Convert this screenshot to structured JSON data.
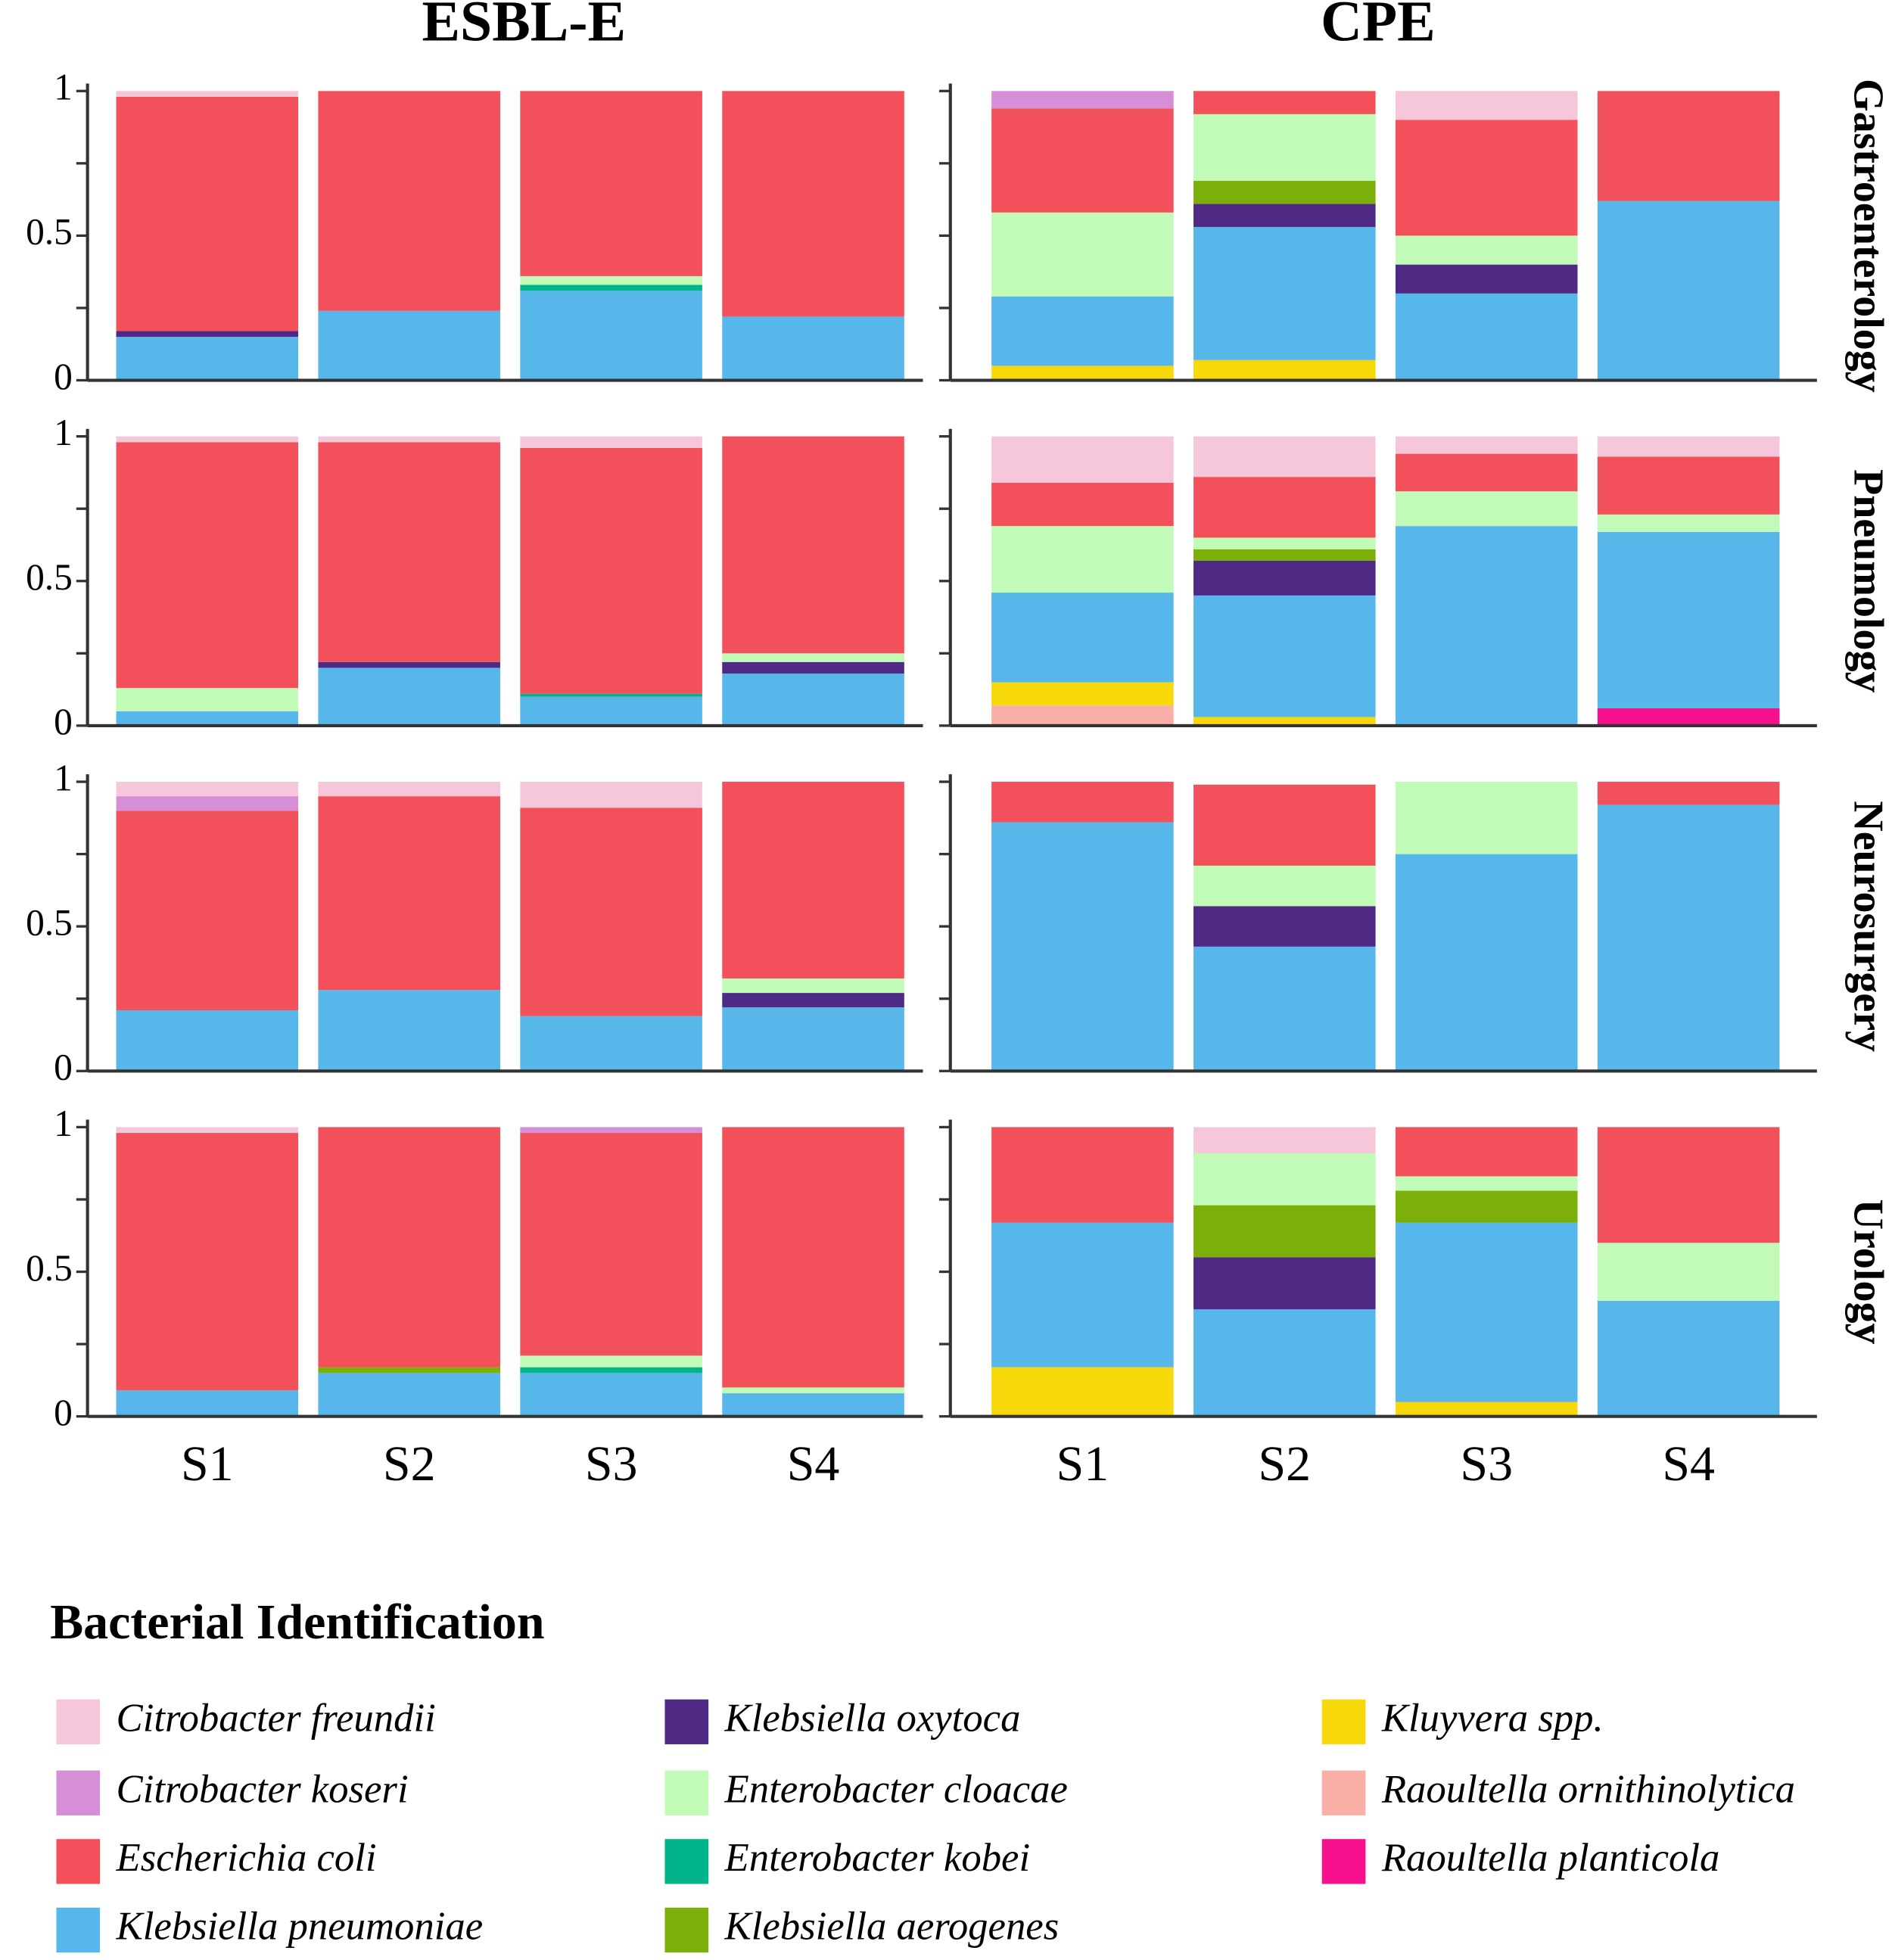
{
  "chart_data": {
    "type": "stacked-bar",
    "column_titles": [
      "ESBL-E",
      "CPE"
    ],
    "row_titles": [
      "Gastroenterology",
      "Pneumology",
      "Neurosurgery",
      "Urology"
    ],
    "categories": [
      "S1",
      "S2",
      "S3",
      "S4"
    ],
    "ylim": [
      0,
      1
    ],
    "yticks": [
      0,
      0.5,
      1
    ],
    "minor_yticks": [
      0.25,
      0.75
    ],
    "legend_title": "Bacterial Identification",
    "series": [
      {
        "name": "Citrobacter freundii",
        "color": "#f6c6db",
        "values": [
          [
            [
              0.02,
              0,
              0,
              0
            ],
            [
              0,
              0,
              0.1,
              0
            ]
          ],
          [
            [
              0.02,
              0.02,
              0.04,
              0
            ],
            [
              0.16,
              0.14,
              0.06,
              0.07
            ]
          ],
          [
            [
              0.05,
              0.05,
              0.09,
              0
            ],
            [
              0,
              0,
              0,
              0
            ]
          ],
          [
            [
              0.02,
              0,
              0,
              0
            ],
            [
              0,
              0.09,
              0,
              0
            ]
          ]
        ]
      },
      {
        "name": "Citrobacter koseri",
        "color": "#d68fd6",
        "values": [
          [
            [
              0,
              0,
              0,
              0
            ],
            [
              0.06,
              0,
              0,
              0
            ]
          ],
          [
            [
              0,
              0,
              0,
              0
            ],
            [
              0,
              0,
              0,
              0
            ]
          ],
          [
            [
              0.05,
              0,
              0,
              0
            ],
            [
              0,
              0,
              0,
              0
            ]
          ],
          [
            [
              0,
              0,
              0.02,
              0
            ],
            [
              0,
              0,
              0,
              0
            ]
          ]
        ]
      },
      {
        "name": "Escherichia coli",
        "color": "#f2505a",
        "values": [
          [
            [
              0.81,
              0.76,
              0.64,
              0.78
            ],
            [
              0.36,
              0.08,
              0.4,
              0.38
            ]
          ],
          [
            [
              0.85,
              0.76,
              0.85,
              0.75
            ],
            [
              0.15,
              0.21,
              0.13,
              0.2
            ]
          ],
          [
            [
              0.69,
              0.67,
              0.72,
              0.68
            ],
            [
              0.14,
              0.28,
              0,
              0.08
            ]
          ],
          [
            [
              0.89,
              0.83,
              0.77,
              0.9
            ],
            [
              0.33,
              0,
              0.17,
              0.4
            ]
          ]
        ]
      },
      {
        "name": "Klebsiella pneumoniae",
        "color": "#58b7ea",
        "values": [
          [
            [
              0.15,
              0.24,
              0.31,
              0.22
            ],
            [
              0.24,
              0.46,
              0.3,
              0.62
            ]
          ],
          [
            [
              0.05,
              0.2,
              0.1,
              0.18
            ],
            [
              0.31,
              0.42,
              0.69,
              0.61
            ]
          ],
          [
            [
              0.21,
              0.28,
              0.19,
              0.22
            ],
            [
              0.86,
              0.43,
              0.75,
              0.92
            ]
          ],
          [
            [
              0.09,
              0.15,
              0.15,
              0.08
            ],
            [
              0.5,
              0.37,
              0.62,
              0.4
            ]
          ]
        ]
      },
      {
        "name": "Klebsiella oxytoca",
        "color": "#4f2a85",
        "values": [
          [
            [
              0.02,
              0,
              0,
              0
            ],
            [
              0,
              0.08,
              0.1,
              0
            ]
          ],
          [
            [
              0,
              0.02,
              0,
              0.04
            ],
            [
              0,
              0.12,
              0,
              0
            ]
          ],
          [
            [
              0,
              0,
              0,
              0.05
            ],
            [
              0,
              0.14,
              0,
              0
            ]
          ],
          [
            [
              0,
              0,
              0,
              0
            ],
            [
              0,
              0.18,
              0,
              0
            ]
          ]
        ]
      },
      {
        "name": "Enterobacter cloacae",
        "color": "#c2fbb7",
        "values": [
          [
            [
              0,
              0,
              0.03,
              0
            ],
            [
              0.29,
              0.23,
              0.1,
              0
            ]
          ],
          [
            [
              0.08,
              0,
              0,
              0.03
            ],
            [
              0.23,
              0.04,
              0.12,
              0.06
            ]
          ],
          [
            [
              0,
              0,
              0,
              0.05
            ],
            [
              0,
              0.14,
              0.25,
              0
            ]
          ],
          [
            [
              0,
              0,
              0.04,
              0.02
            ],
            [
              0,
              0.18,
              0.05,
              0.2
            ]
          ]
        ]
      },
      {
        "name": "Enterobacter kobei",
        "color": "#00b58a",
        "values": [
          [
            [
              0,
              0,
              0.02,
              0
            ],
            [
              0,
              0,
              0,
              0
            ]
          ],
          [
            [
              0,
              0,
              0.01,
              0
            ],
            [
              0,
              0,
              0,
              0
            ]
          ],
          [
            [
              0,
              0,
              0,
              0
            ],
            [
              0,
              0,
              0,
              0
            ]
          ],
          [
            [
              0,
              0,
              0.02,
              0
            ],
            [
              0,
              0,
              0,
              0
            ]
          ]
        ]
      },
      {
        "name": "Klebsiella aerogenes",
        "color": "#7daf0a",
        "values": [
          [
            [
              0,
              0,
              0,
              0
            ],
            [
              0,
              0.08,
              0,
              0
            ]
          ],
          [
            [
              0,
              0,
              0,
              0
            ],
            [
              0,
              0.04,
              0,
              0
            ]
          ],
          [
            [
              0,
              0,
              0,
              0
            ],
            [
              0,
              0,
              0,
              0
            ]
          ],
          [
            [
              0,
              0.02,
              0,
              0
            ],
            [
              0,
              0.18,
              0.11,
              0
            ]
          ]
        ]
      },
      {
        "name": "Kluyvera spp.",
        "color": "#f7d80b",
        "values": [
          [
            [
              0,
              0,
              0,
              0
            ],
            [
              0.05,
              0.07,
              0,
              0
            ]
          ],
          [
            [
              0,
              0,
              0,
              0
            ],
            [
              0.08,
              0.03,
              0,
              0
            ]
          ],
          [
            [
              0,
              0,
              0,
              0
            ],
            [
              0,
              0,
              0,
              0
            ]
          ],
          [
            [
              0,
              0,
              0,
              0
            ],
            [
              0.17,
              0,
              0.05,
              0
            ]
          ]
        ]
      },
      {
        "name": "Raoultella ornithinolytica",
        "color": "#f9aea6",
        "values": [
          [
            [
              0,
              0,
              0,
              0
            ],
            [
              0,
              0,
              0,
              0
            ]
          ],
          [
            [
              0,
              0,
              0,
              0
            ],
            [
              0.07,
              0,
              0,
              0
            ]
          ],
          [
            [
              0,
              0,
              0,
              0
            ],
            [
              0,
              0,
              0,
              0
            ]
          ],
          [
            [
              0,
              0,
              0,
              0
            ],
            [
              0,
              0,
              0,
              0
            ]
          ]
        ]
      },
      {
        "name": "Raoultella planticola",
        "color": "#f7108e",
        "values": [
          [
            [
              0,
              0,
              0,
              0
            ],
            [
              0,
              0,
              0,
              0
            ]
          ],
          [
            [
              0,
              0,
              0,
              0
            ],
            [
              0,
              0,
              0,
              0.06
            ]
          ],
          [
            [
              0,
              0,
              0,
              0
            ],
            [
              0,
              0,
              0,
              0
            ]
          ],
          [
            [
              0,
              0,
              0,
              0
            ],
            [
              0,
              0,
              0,
              0
            ]
          ]
        ]
      }
    ]
  }
}
